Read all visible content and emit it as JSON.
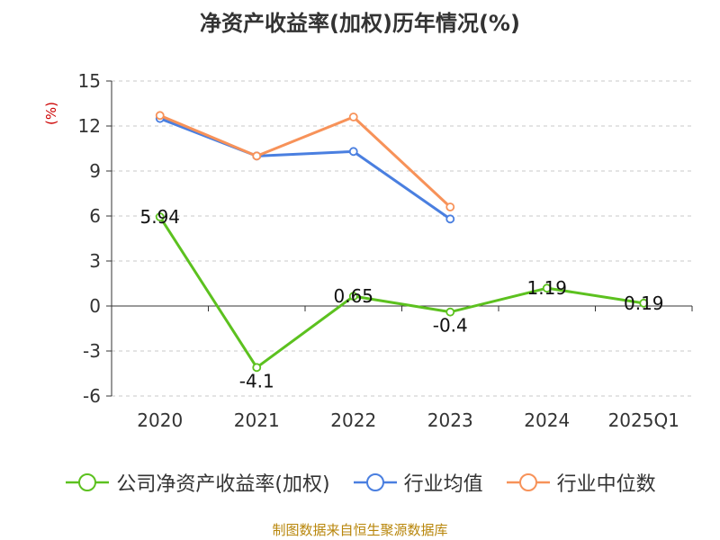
{
  "chart_data": {
    "type": "line",
    "title": "净资产收益率(加权)历年情况(%)",
    "ylabel": "(%)",
    "xlabel": "",
    "categories": [
      "2020",
      "2021",
      "2022",
      "2023",
      "2024",
      "2025Q1"
    ],
    "ylim": [
      -6,
      15
    ],
    "yticks": [
      15,
      12,
      9,
      6,
      3,
      0,
      -3,
      -6
    ],
    "grid": true,
    "legend_position": "bottom",
    "series": [
      {
        "name": "公司净资产收益率(加权)",
        "color": "#5cc11f",
        "values": [
          5.94,
          -4.1,
          0.65,
          -0.4,
          1.19,
          0.19
        ],
        "labels": [
          "5.94",
          "-4.1",
          "0.65",
          "-0.4",
          "1.19",
          "0.19"
        ]
      },
      {
        "name": "行业均值",
        "color": "#4a7fe0",
        "values": [
          12.5,
          10.0,
          10.3,
          5.8,
          null,
          null
        ]
      },
      {
        "name": "行业中位数",
        "color": "#f79259",
        "values": [
          12.7,
          10.0,
          12.6,
          6.6,
          null,
          null
        ]
      }
    ]
  },
  "footer": {
    "source": "制图数据来自恒生聚源数据库"
  }
}
